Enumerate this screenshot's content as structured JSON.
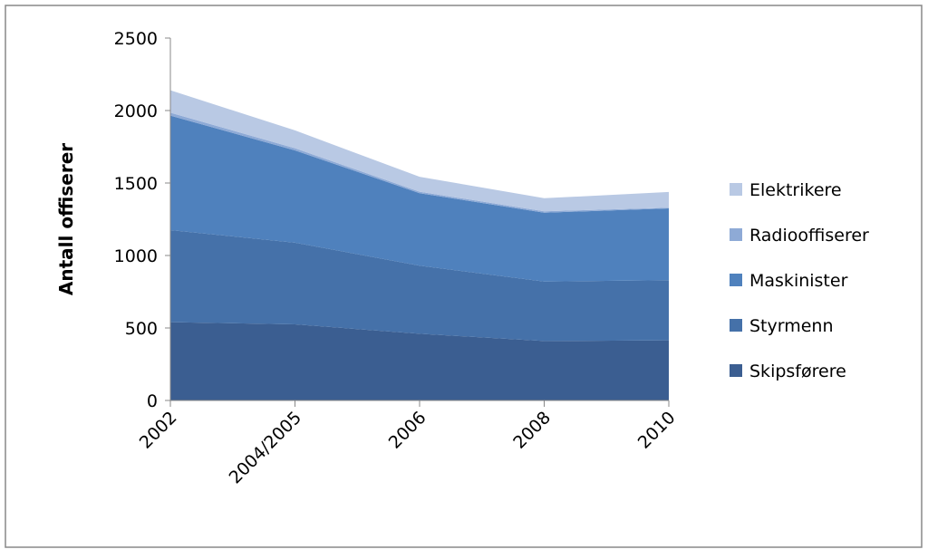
{
  "chart_data": {
    "type": "stacked-area",
    "y_label": "Antall offiserer",
    "categories": [
      "2002",
      "2004/2005",
      "2006",
      "2008",
      "2010"
    ],
    "series": [
      {
        "name": "Skipsførere",
        "color": "#3b5e91",
        "values": [
          540,
          525,
          460,
          410,
          415
        ]
      },
      {
        "name": "Styrmenn",
        "color": "#4571a9",
        "values": [
          635,
          563,
          470,
          410,
          415
        ]
      },
      {
        "name": "Maskinister",
        "color": "#4f81bd",
        "values": [
          790,
          637,
          500,
          475,
          495
        ]
      },
      {
        "name": "Radiooffiserer",
        "color": "#8eaad6",
        "values": [
          20,
          15,
          10,
          10,
          5
        ]
      },
      {
        "name": "Elektrikere",
        "color": "#b9c9e4",
        "values": [
          155,
          123,
          103,
          90,
          108
        ]
      }
    ],
    "ylim": [
      0,
      2500
    ],
    "yticks": [
      0,
      500,
      1000,
      1500,
      2000,
      2500
    ],
    "legend": "right"
  }
}
